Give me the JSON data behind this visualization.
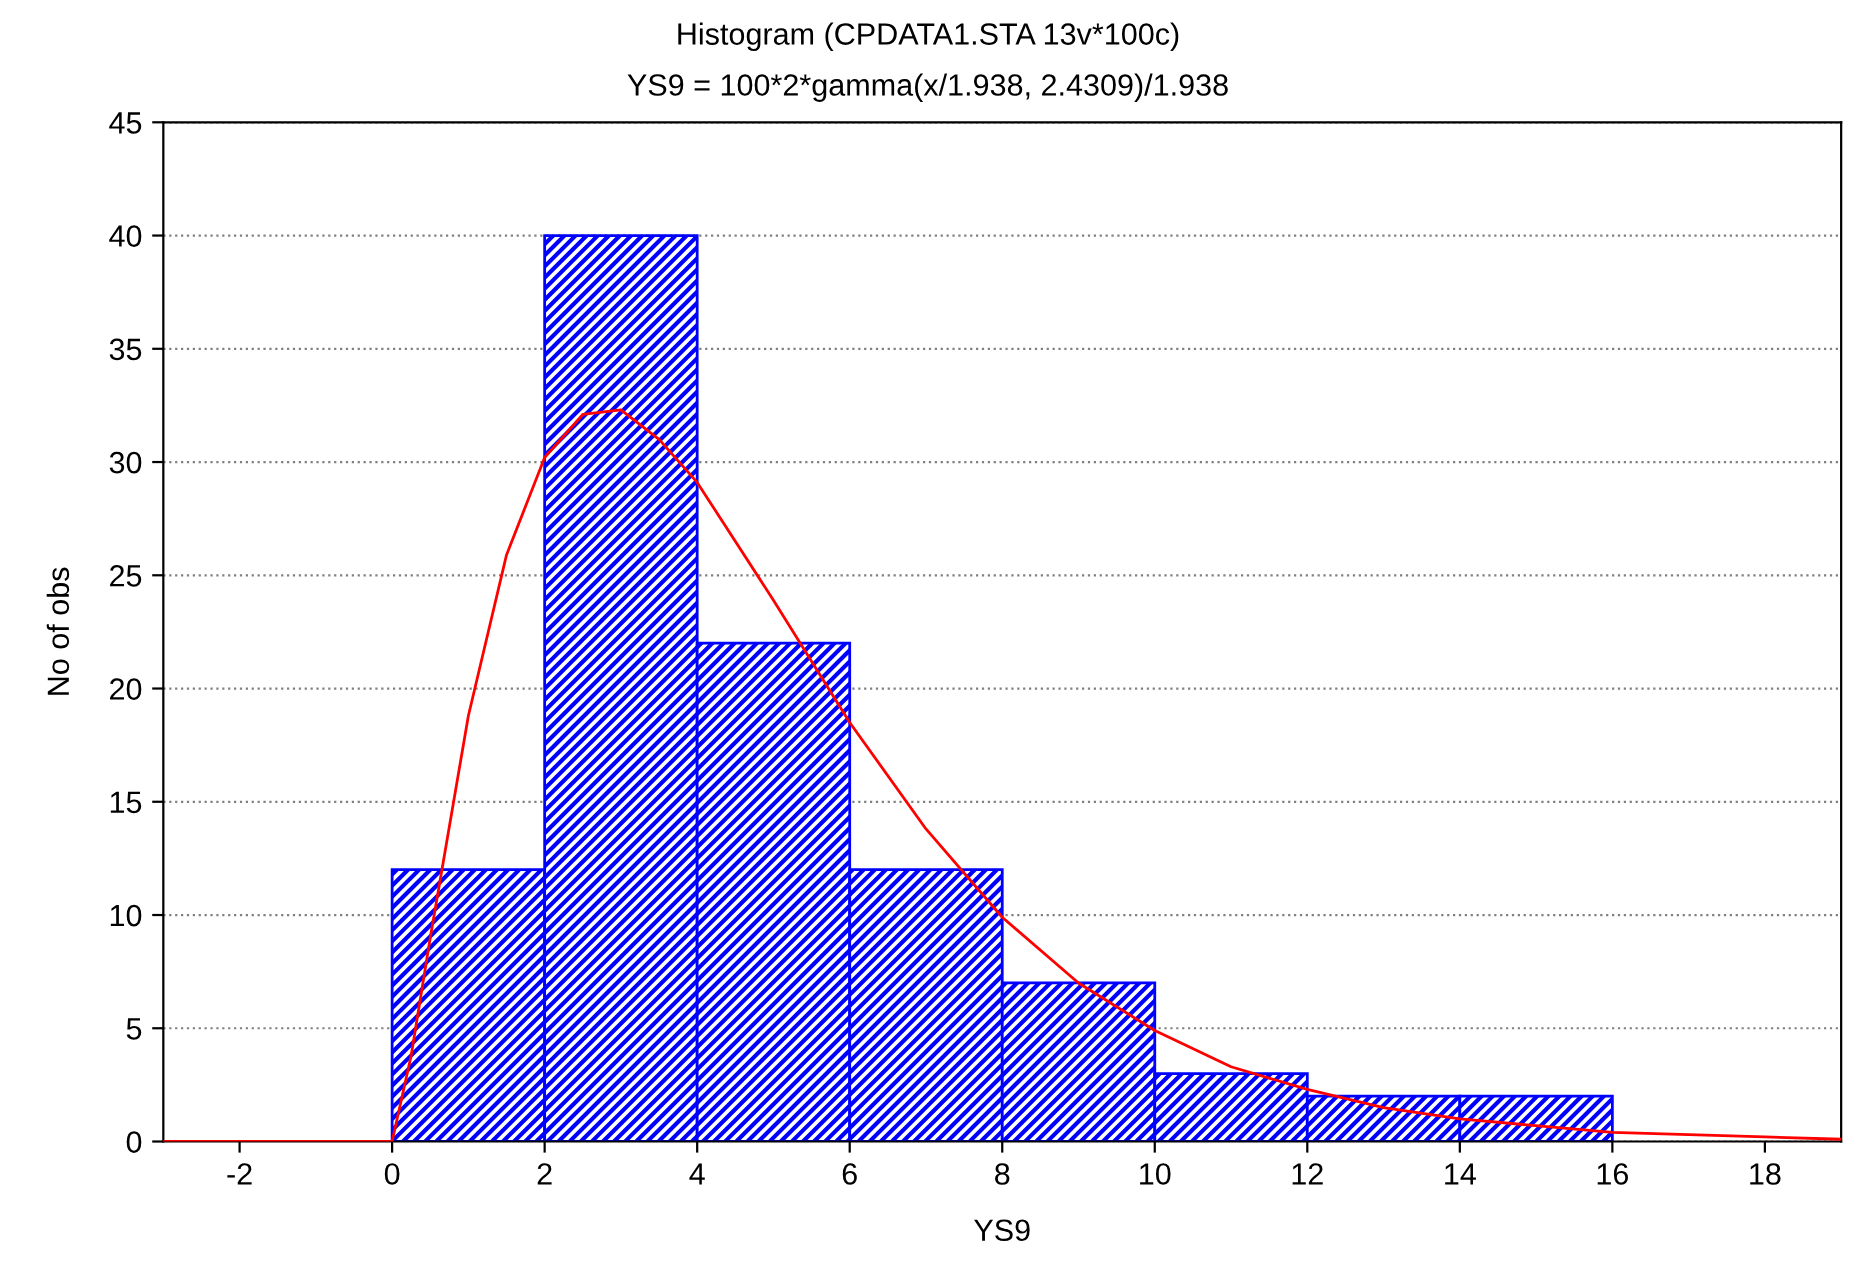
{
  "chart_data": {
    "type": "histogram",
    "title": "Histogram (CPDATA1.STA 13v*100c)",
    "subtitle": "YS9 = 100*2*gamma(x/1.938, 2.4309)/1.938",
    "xlabel": "YS9",
    "ylabel": "No of obs",
    "bins": [
      0,
      2,
      4,
      6,
      8,
      10,
      12,
      14,
      16
    ],
    "values": [
      12,
      40,
      22,
      12,
      7,
      3,
      2,
      2
    ],
    "color": "#0000ff",
    "series": [
      {
        "type": "line",
        "color": "#ff0000",
        "x": [
          -3,
          -2,
          -1,
          0,
          0.25,
          0.5,
          1,
          1.5,
          2,
          2.5,
          3,
          3.5,
          4,
          5,
          6,
          7,
          8,
          9,
          10,
          11,
          12,
          13,
          14,
          16,
          18,
          19
        ],
        "values": [
          0,
          0,
          0,
          0,
          3.8,
          9.0,
          18.8,
          25.9,
          30.2,
          32.1,
          32.3,
          31.0,
          29.1,
          23.9,
          18.5,
          13.8,
          9.9,
          7.0,
          4.9,
          3.3,
          2.3,
          1.5,
          1.0,
          0.4,
          0.2,
          0.1
        ]
      }
    ],
    "xlim": [
      -3,
      19
    ],
    "xticks": [
      -2,
      0,
      2,
      4,
      6,
      8,
      10,
      12,
      14,
      16,
      18
    ],
    "ylim": [
      0,
      45
    ],
    "yticks": [
      0,
      5,
      10,
      15,
      20,
      25,
      30,
      35,
      40,
      45
    ],
    "grid": "y"
  }
}
